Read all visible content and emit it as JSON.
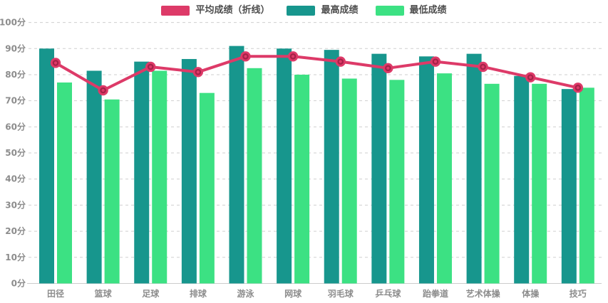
{
  "legend": {
    "items": [
      {
        "label": "平均成绩（折线）",
        "color": "#dd3a68",
        "series_type": "line"
      },
      {
        "label": "最高成绩",
        "color": "#17968d",
        "series_type": "bar"
      },
      {
        "label": "最低成绩",
        "color": "#3ce183",
        "series_type": "bar"
      }
    ]
  },
  "colors": {
    "average_line": "#dd3a68",
    "marker_ring": "#a62148",
    "max_bar": "#17968d",
    "min_bar": "#3ce183",
    "grid_line": "#cfcfcf",
    "axis_line": "#cccccc",
    "axis_text": "#8c8c8c",
    "legend_text": "#4d4d4d",
    "background": "#ffffff"
  },
  "chart_data": {
    "type": "bar",
    "title": "",
    "categories": [
      "田径",
      "篮球",
      "足球",
      "排球",
      "游泳",
      "网球",
      "羽毛球",
      "乒乓球",
      "跆拳道",
      "艺术体操",
      "体操",
      "技巧"
    ],
    "series": [
      {
        "name": "平均成绩（折线）",
        "type": "line",
        "color": "#dd3a68",
        "values": [
          84.5,
          74,
          83,
          81,
          87,
          87,
          85,
          82.5,
          85,
          83,
          79,
          75
        ]
      },
      {
        "name": "最高成绩",
        "type": "bar",
        "color": "#17968d",
        "values": [
          90,
          81.5,
          85,
          86,
          91,
          90,
          89.5,
          88,
          87,
          88,
          79.5,
          74.5
        ]
      },
      {
        "name": "最低成绩",
        "type": "bar",
        "color": "#3ce183",
        "values": [
          77,
          70.5,
          81.5,
          73,
          82.5,
          80,
          78.5,
          78,
          80.5,
          76.5,
          76.5,
          75
        ]
      }
    ],
    "y_axis": {
      "min": 0,
      "max": 100,
      "step": 10,
      "unit": "分",
      "tick_labels": [
        "100分",
        "90分",
        "80分",
        "70分",
        "60分",
        "50分",
        "40分",
        "30分",
        "20分",
        "10分",
        "0分"
      ]
    },
    "grid": {
      "horizontal_lines": true,
      "style": "dashed"
    },
    "legend_position": "top-center"
  }
}
